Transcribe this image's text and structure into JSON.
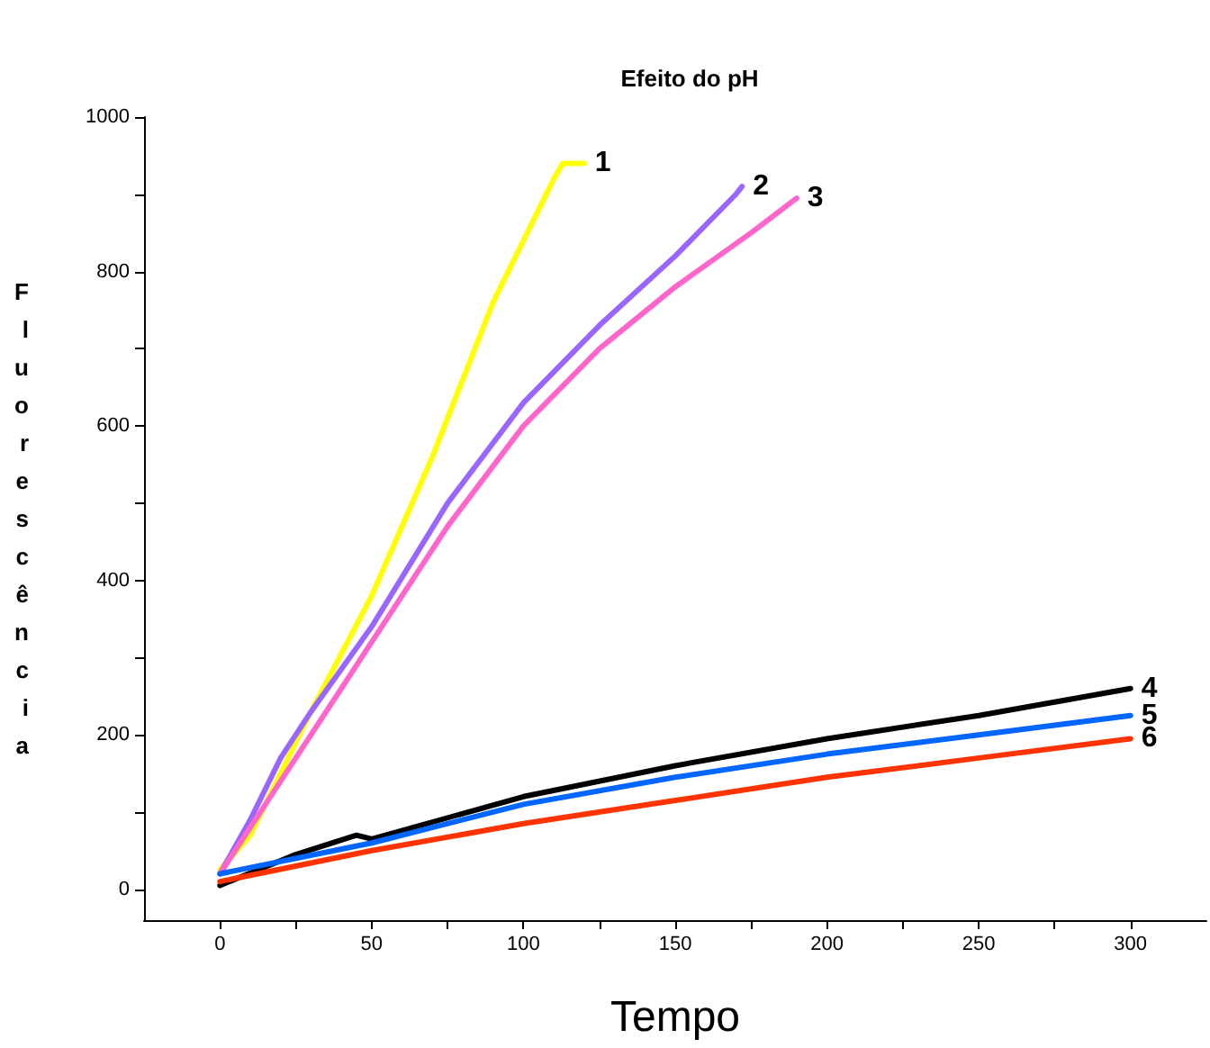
{
  "chart_data": {
    "type": "line",
    "title": "Efeito do pH",
    "xlabel": "Tempo",
    "ylabel": "Fluorescência",
    "xlim": [
      -25,
      325
    ],
    "xticks": [
      0,
      {
        "value": 25,
        "label": null
      },
      50,
      {
        "value": 75,
        "label": null
      },
      100,
      {
        "value": 125,
        "label": null
      },
      150,
      {
        "value": 175,
        "label": null
      },
      200,
      {
        "value": 225,
        "label": null
      },
      250,
      {
        "value": 275,
        "label": null
      },
      300
    ],
    "ylim": [
      -40,
      1000
    ],
    "yticks": [
      0,
      {
        "value": 100,
        "label": null
      },
      200,
      {
        "value": 300,
        "label": null
      },
      400,
      {
        "value": 500,
        "label": null
      },
      600,
      {
        "value": 700,
        "label": null
      },
      800,
      {
        "value": 900,
        "label": null
      },
      1000
    ],
    "grid": false,
    "legend": false,
    "marker": "none",
    "line_style": "solid",
    "series": [
      {
        "name": "1",
        "color": "#ffff00",
        "x": [
          0,
          10,
          20,
          30,
          50,
          70,
          90,
          100,
          110,
          113,
          120
        ],
        "values": [
          25,
          70,
          150,
          230,
          380,
          560,
          760,
          840,
          920,
          940,
          940
        ]
      },
      {
        "name": "2",
        "color": "#9966ff",
        "x": [
          0,
          10,
          20,
          30,
          50,
          75,
          100,
          125,
          150,
          170,
          172
        ],
        "values": [
          20,
          90,
          170,
          230,
          340,
          500,
          630,
          730,
          820,
          900,
          910
        ]
      },
      {
        "name": "3",
        "color": "#ff66cc",
        "x": [
          0,
          20,
          30,
          50,
          75,
          100,
          125,
          150,
          175,
          190
        ],
        "values": [
          20,
          140,
          200,
          320,
          470,
          600,
          700,
          780,
          850,
          895
        ]
      },
      {
        "name": "4",
        "color": "#000000",
        "x": [
          0,
          25,
          45,
          50,
          100,
          150,
          200,
          250,
          300
        ],
        "values": [
          5,
          45,
          70,
          65,
          120,
          160,
          195,
          225,
          260
        ]
      },
      {
        "name": "5",
        "color": "#0066ff",
        "x": [
          0,
          50,
          100,
          150,
          200,
          250,
          300
        ],
        "values": [
          20,
          60,
          110,
          145,
          175,
          200,
          225
        ]
      },
      {
        "name": "6",
        "color": "#ff3300",
        "x": [
          0,
          50,
          100,
          150,
          200,
          250,
          300
        ],
        "values": [
          10,
          50,
          85,
          115,
          145,
          170,
          195
        ]
      }
    ]
  }
}
